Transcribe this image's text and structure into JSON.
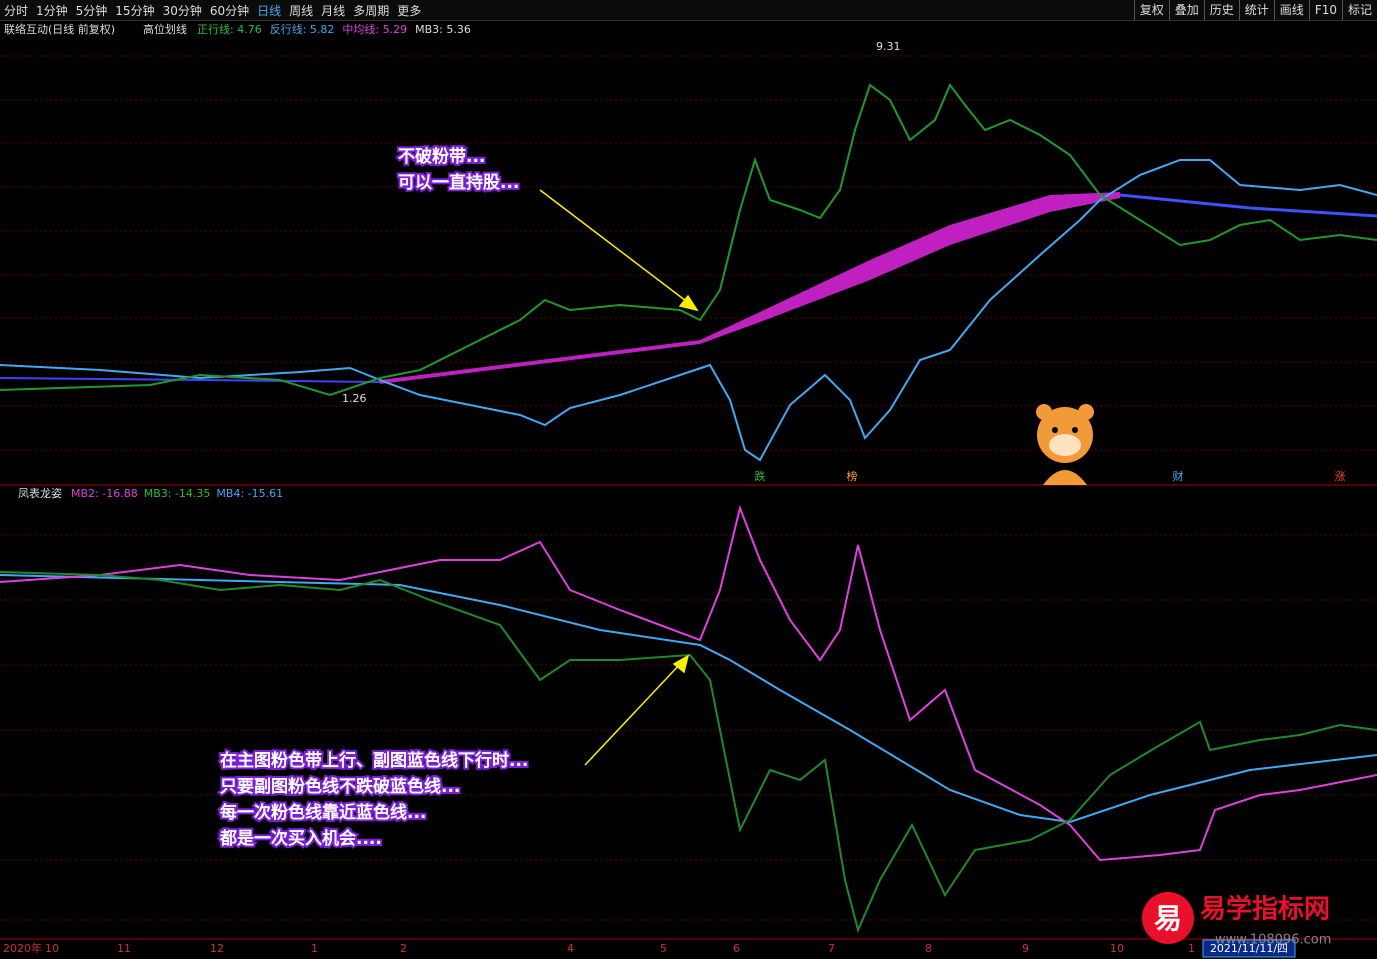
{
  "toolbar": {
    "tabs": [
      "分时",
      "1分钟",
      "5分钟",
      "15分钟",
      "30分钟",
      "60分钟",
      "日线",
      "周线",
      "月线",
      "多周期",
      "更多"
    ],
    "active_tab": 6,
    "buttons": [
      "复权",
      "叠加",
      "历史",
      "统计",
      "画线",
      "F10",
      "标记"
    ]
  },
  "main_panel": {
    "stock": "联络互动(日线 前复权)",
    "indicator": "高位划线",
    "readouts": [
      {
        "text": "正行线: 4.76",
        "color": "#2fbf2f"
      },
      {
        "text": "反行线: 5.82",
        "color": "#3fa9f5"
      },
      {
        "text": "中均线: 5.29",
        "color": "#e040e0"
      },
      {
        "text": "MB3: 5.36",
        "color": "#dddddd"
      }
    ],
    "high_label": "9.31",
    "low_label": "1.26",
    "annotation": [
      "不破粉带...",
      "可以一直持股..."
    ],
    "markers": [
      {
        "text": "跌",
        "color": "#2fbf2f"
      },
      {
        "text": "榜",
        "color": "#ff9a2e"
      },
      {
        "text": "财",
        "color": "#3fa9f5"
      },
      {
        "text": "涨",
        "color": "#ff3b3b"
      }
    ]
  },
  "sub_panel": {
    "indicator": "凤表龙姿",
    "readouts": [
      {
        "text": "MB2: -16.88",
        "color": "#e040e0"
      },
      {
        "text": "MB3: -14.35",
        "color": "#2fbf2f"
      },
      {
        "text": "MB4: -15.61",
        "color": "#3fa9f5"
      }
    ],
    "annotation": [
      "在主图粉色带上行、副图蓝色线下行时...",
      "只要副图粉色线不跌破蓝色线...",
      "每一次粉色线靠近蓝色线...",
      "都是一次买入机会...."
    ]
  },
  "x_axis": {
    "labels": [
      "2020年",
      "10",
      "11",
      "12",
      "1",
      "2",
      "4",
      "5",
      "6",
      "7",
      "8",
      "9",
      "10",
      "1"
    ],
    "cursor_date": "2021/11/11/四"
  },
  "watermark": {
    "logo": "易",
    "name": "易学指标网",
    "url": "www.108096.com"
  }
}
